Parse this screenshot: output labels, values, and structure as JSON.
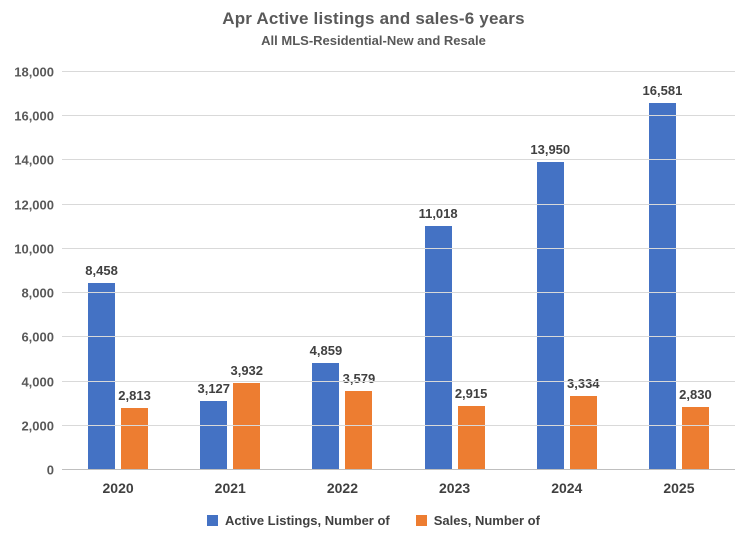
{
  "header": {
    "title": "Apr Active listings and sales-6 years",
    "subtitle": "All MLS-Residential-New and Resale"
  },
  "colors": {
    "active_listings": "#4472C4",
    "sales": "#ED7D31",
    "gridline": "#D9D9D9",
    "axis_line": "#BFBFBF",
    "title_text": "#595959",
    "label_text": "#404040"
  },
  "chart_data": {
    "type": "bar",
    "title": "Apr Active listings and sales-6 years",
    "subtitle": "All MLS-Residential-New and Resale",
    "categories": [
      "2020",
      "2021",
      "2022",
      "2023",
      "2024",
      "2025"
    ],
    "series": [
      {
        "name": "Active Listings, Number of",
        "color": "#4472C4",
        "values": [
          8458,
          3127,
          4859,
          11018,
          13950,
          16581
        ]
      },
      {
        "name": "Sales, Number of",
        "color": "#ED7D31",
        "values": [
          2813,
          3932,
          3579,
          2915,
          3334,
          2830
        ]
      }
    ],
    "data_labels": [
      [
        "8,458",
        "3,127",
        "4,859",
        "11,018",
        "13,950",
        "16,581"
      ],
      [
        "2,813",
        "3,932",
        "3,579",
        "2,915",
        "3,334",
        "2,830"
      ]
    ],
    "ylim": [
      0,
      18000
    ],
    "ytick_step": 2000,
    "ytick_labels": [
      "0",
      "2,000",
      "4,000",
      "6,000",
      "8,000",
      "10,000",
      "12,000",
      "14,000",
      "16,000",
      "18,000"
    ],
    "grid": true,
    "legend_position": "bottom"
  }
}
